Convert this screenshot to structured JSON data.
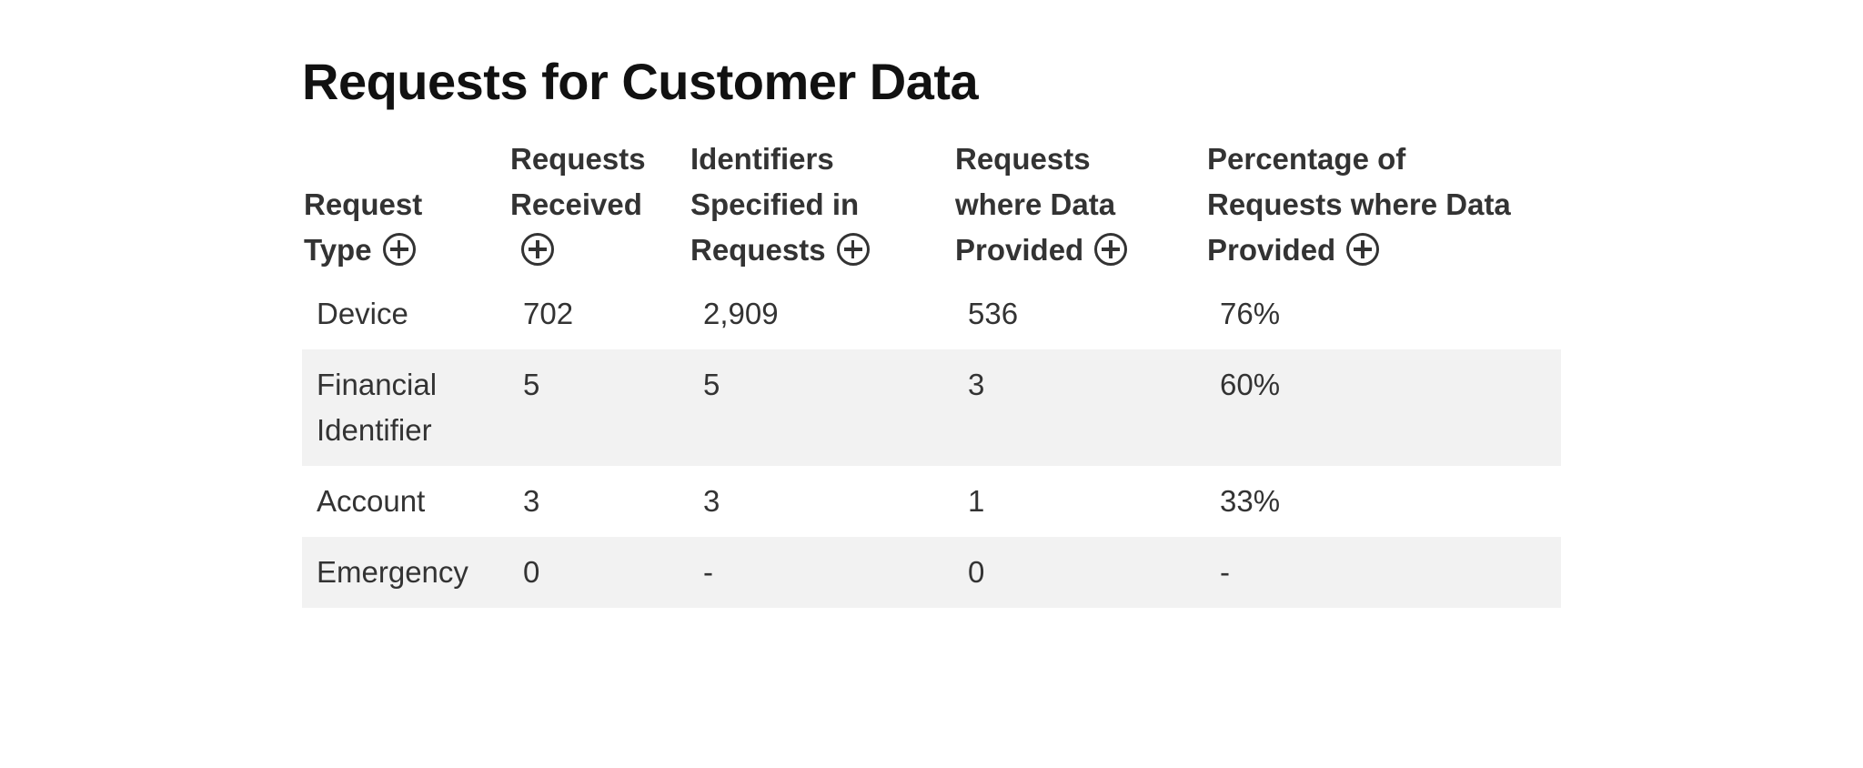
{
  "title": "Requests for Customer Data",
  "table": {
    "headers": [
      {
        "label": "Request Type",
        "icon": "plus-circle-icon"
      },
      {
        "label": "Requests Received",
        "icon": "plus-circle-icon"
      },
      {
        "label": "Identifiers Specified in Requests",
        "icon": "plus-circle-icon"
      },
      {
        "label": "Requests where Data Provided",
        "icon": "plus-circle-icon"
      },
      {
        "label": "Percentage of Requests where Data Provided",
        "icon": "plus-circle-icon"
      }
    ],
    "rows": [
      [
        "Device",
        "702",
        "2,909",
        "536",
        "76%"
      ],
      [
        "Financial Identifier",
        "5",
        "5",
        "3",
        "60%"
      ],
      [
        "Account",
        "3",
        "3",
        "1",
        "33%"
      ],
      [
        "Emergency",
        "0",
        "-",
        "0",
        "-"
      ]
    ]
  },
  "colors": {
    "text": "#333333",
    "title": "#111111",
    "stripe": "#f2f2f2",
    "background": "#ffffff"
  }
}
